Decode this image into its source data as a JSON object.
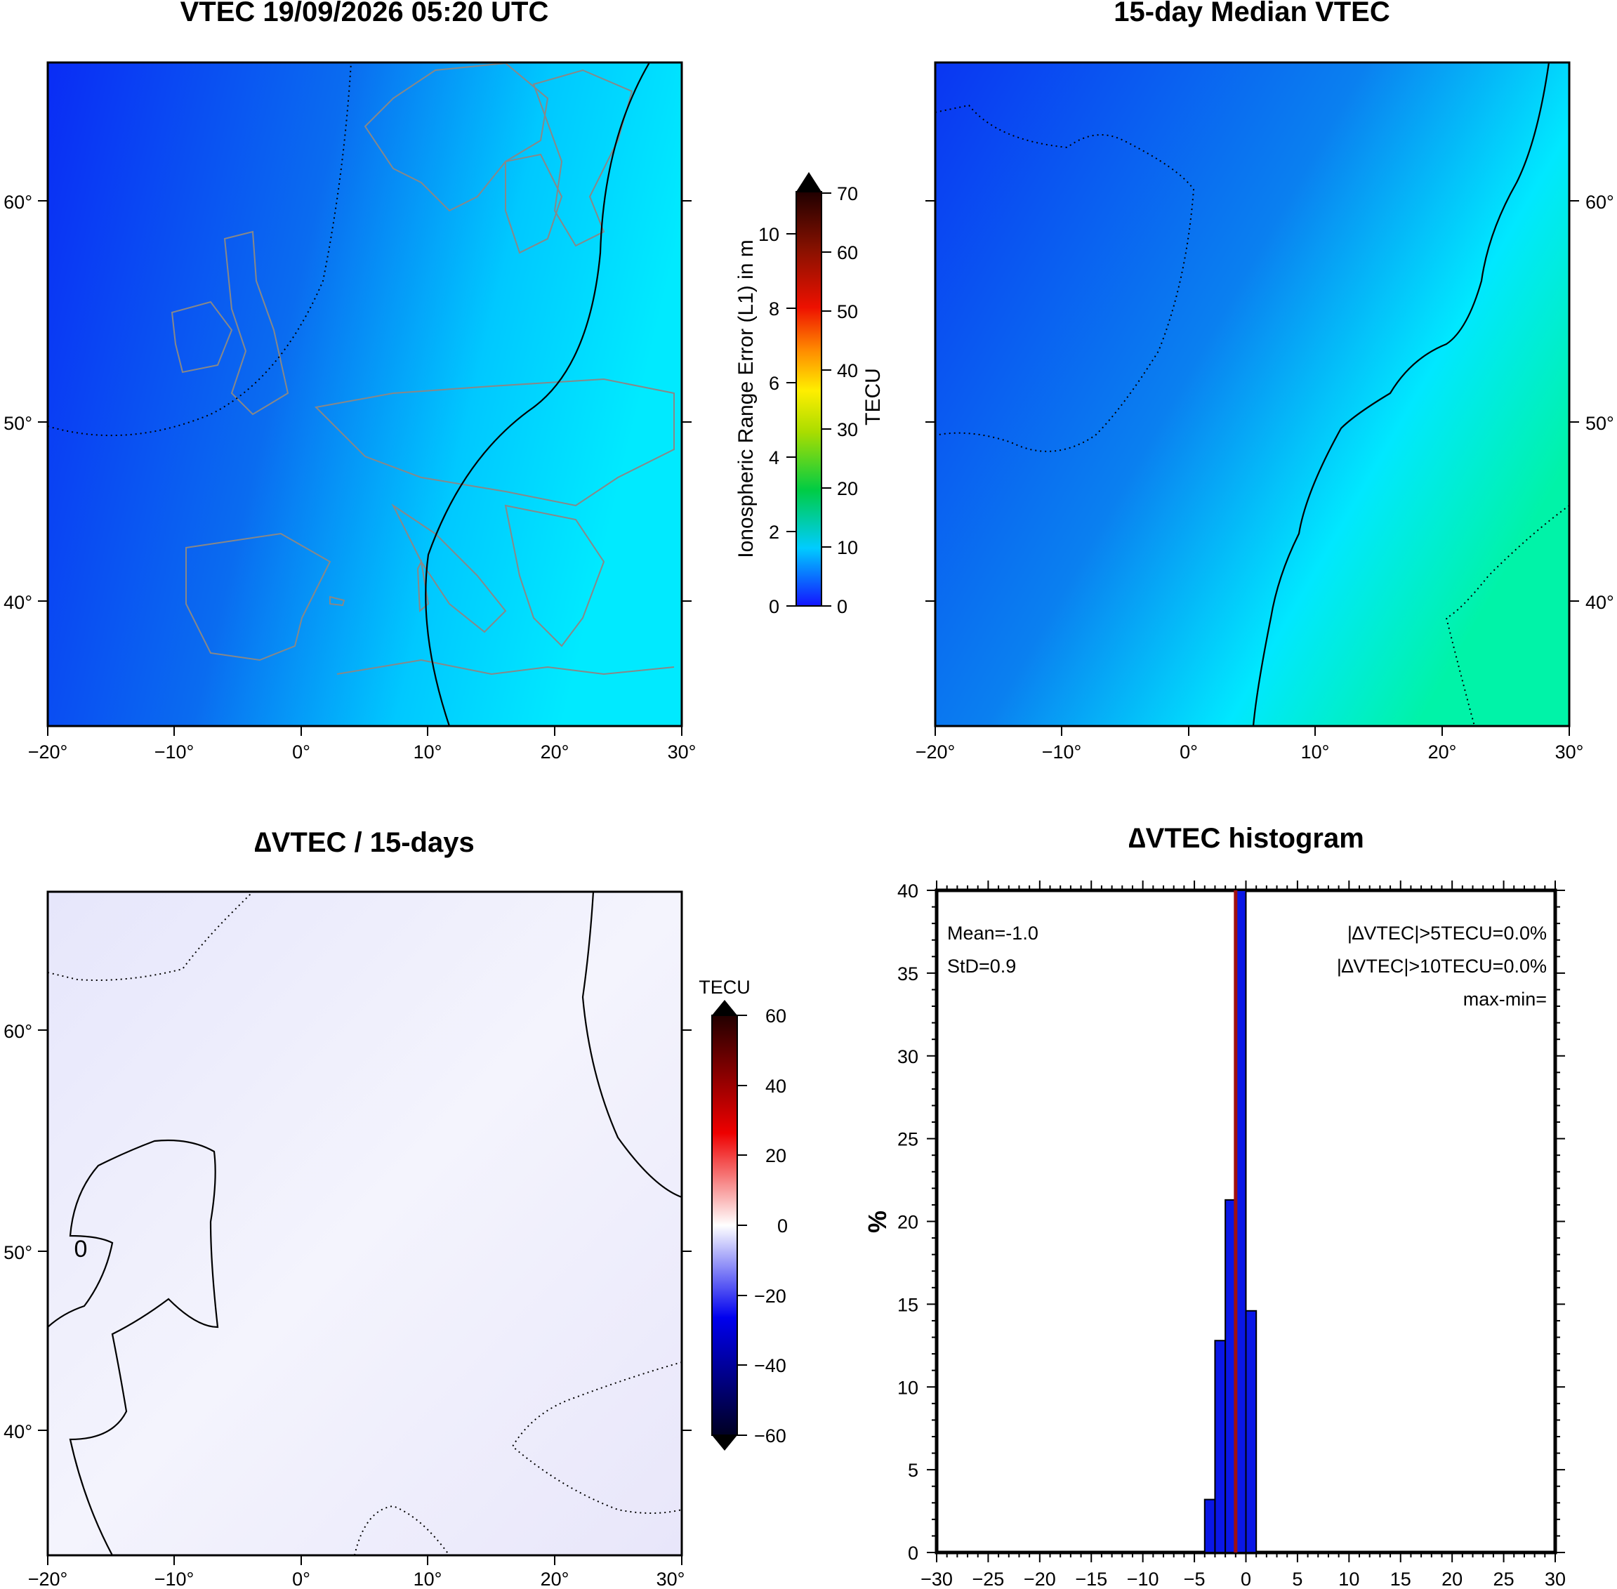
{
  "colors": {
    "vtec_map_start": "#0a2cf5",
    "vtec_map_end": "#00e8ff",
    "delta_map": "#eeeefc",
    "hist_bar": "#0a17e6",
    "mean_line": "#a01010",
    "coast": "#888888",
    "frame": "#000000"
  },
  "maps": [
    {
      "title": "VTEC 19/09/2026 05:20 UTC",
      "xticks": [
        "−20°",
        "−10°",
        "0°",
        "10°",
        "20°",
        "30°"
      ],
      "yticks": [
        "60°",
        "50°",
        "40°"
      ],
      "ytick_side": "left"
    },
    {
      "title": "15-day Median VTEC",
      "xticks": [
        "−20°",
        "−10°",
        "0°",
        "10°",
        "20°",
        "30°"
      ],
      "yticks": [
        "60°",
        "50°",
        "40°"
      ],
      "ytick_side": "right"
    },
    {
      "title": "∆VTEC / 15-days",
      "xticks": [
        "−20°",
        "−10°",
        "0°",
        "10°",
        "20°",
        "30°"
      ],
      "yticks": [
        "60°",
        "50°",
        "40°"
      ],
      "ytick_side": "left",
      "contour_label": "0"
    }
  ],
  "colorbar_vtec": {
    "left_label": "Ionospheric Range Error (L1) in m",
    "right_label": "TECU",
    "left_ticks": [
      "0",
      "2",
      "4",
      "6",
      "8",
      "10"
    ],
    "right_ticks": [
      "0",
      "10",
      "20",
      "30",
      "40",
      "50",
      "60",
      "70"
    ]
  },
  "colorbar_delta": {
    "title": "TECU",
    "ticks": [
      "60",
      "40",
      "20",
      "0",
      "−20",
      "−40",
      "−60"
    ]
  },
  "chart_data": {
    "type": "bar",
    "title": "∆VTEC histogram",
    "xlabel": "",
    "ylabel": "%",
    "xlim": [
      -30,
      30
    ],
    "ylim": [
      0,
      40
    ],
    "xticks": [
      "−30",
      "−25",
      "−20",
      "−15",
      "−10",
      "−5",
      "0",
      "5",
      "10",
      "15",
      "20",
      "25",
      "30"
    ],
    "yticks": [
      "0",
      "5",
      "10",
      "15",
      "20",
      "25",
      "30",
      "35",
      "40"
    ],
    "bins": [
      {
        "x0": -4,
        "x1": -3,
        "value": 3.2
      },
      {
        "x0": -3,
        "x1": -2,
        "value": 12.8
      },
      {
        "x0": -2,
        "x1": -1,
        "value": 21.3
      },
      {
        "x0": -1,
        "x1": 0,
        "value": 40.0
      },
      {
        "x0": 0,
        "x1": 1,
        "value": 14.6
      }
    ],
    "mean_line_x": -1.0,
    "annotations": {
      "mean": "Mean=-1.0",
      "std": "StD=0.9",
      "gt5": "|∆VTEC|>5TECU=0.0%",
      "gt10": "|∆VTEC|>10TECU=0.0%",
      "maxmin": "max-min="
    }
  }
}
